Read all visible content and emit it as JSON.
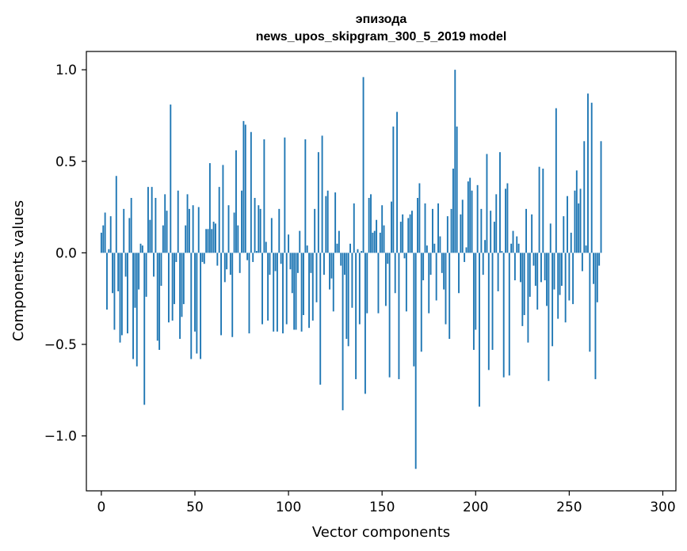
{
  "chart_data": {
    "type": "bar",
    "title": [
      "эпизода",
      "news_upos_skipgram_300_5_2019 model"
    ],
    "xlabel": "Vector components",
    "ylabel": "Components values",
    "xlim": [
      -8,
      307
    ],
    "ylim": [
      -1.3,
      1.1
    ],
    "xticks": [
      0,
      50,
      100,
      150,
      200,
      250,
      300
    ],
    "yticks": [
      1.0,
      0.5,
      0.0,
      -0.5,
      -1.0
    ],
    "ytick_labels": [
      "1.0",
      "0.5",
      "0.0",
      "−0.5",
      "−1.0"
    ],
    "bar_color": "#1f77b4",
    "values": [
      0.11,
      0.15,
      0.22,
      -0.31,
      0.02,
      0.2,
      -0.22,
      -0.42,
      0.42,
      -0.21,
      -0.49,
      -0.45,
      0.24,
      -0.13,
      -0.44,
      0.19,
      0.3,
      -0.58,
      -0.3,
      -0.62,
      -0.2,
      0.05,
      0.04,
      -0.83,
      -0.24,
      0.36,
      0.18,
      0.36,
      -0.13,
      0.3,
      -0.48,
      -0.53,
      -0.18,
      0.15,
      0.32,
      0.23,
      -0.38,
      0.81,
      -0.37,
      -0.28,
      -0.05,
      0.34,
      -0.47,
      -0.35,
      -0.28,
      0.15,
      0.32,
      0.24,
      -0.58,
      0.26,
      -0.43,
      -0.55,
      0.25,
      -0.58,
      -0.05,
      -0.06,
      0.13,
      0.13,
      0.49,
      0.13,
      0.17,
      0.16,
      -0.07,
      0.36,
      -0.45,
      0.48,
      -0.16,
      -0.09,
      0.26,
      -0.12,
      -0.46,
      0.22,
      0.56,
      0.15,
      -0.11,
      0.34,
      0.72,
      0.7,
      -0.04,
      -0.44,
      0.66,
      -0.05,
      0.3,
      0.01,
      0.26,
      0.24,
      -0.39,
      0.62,
      0.06,
      -0.37,
      -0.12,
      0.19,
      -0.43,
      -0.1,
      -0.43,
      0.24,
      -0.06,
      -0.44,
      0.63,
      -0.39,
      0.1,
      -0.09,
      -0.22,
      -0.42,
      -0.42,
      -0.11,
      0.12,
      -0.43,
      -0.34,
      0.62,
      0.04,
      -0.41,
      -0.11,
      -0.37,
      0.24,
      -0.27,
      0.55,
      -0.72,
      0.64,
      -0.12,
      0.31,
      0.34,
      -0.2,
      -0.14,
      -0.32,
      0.33,
      0.05,
      0.12,
      -0.07,
      -0.86,
      -0.12,
      -0.47,
      -0.51,
      0.05,
      -0.3,
      0.27,
      -0.69,
      0.02,
      -0.39,
      0.01,
      0.96,
      -0.77,
      -0.33,
      0.3,
      0.32,
      0.11,
      0.12,
      0.18,
      -0.33,
      0.11,
      0.26,
      0.15,
      -0.29,
      -0.06,
      -0.68,
      0.28,
      0.69,
      -0.22,
      0.77,
      -0.69,
      0.17,
      0.21,
      -0.03,
      -0.32,
      0.19,
      0.21,
      0.23,
      -0.62,
      -1.18,
      0.3,
      0.38,
      -0.54,
      -0.15,
      0.27,
      0.04,
      -0.33,
      -0.12,
      0.24,
      0.05,
      -0.26,
      0.27,
      0.09,
      -0.11,
      -0.2,
      -0.39,
      0.2,
      -0.47,
      0.24,
      0.46,
      1.0,
      0.69,
      -0.22,
      0.21,
      0.29,
      -0.05,
      0.03,
      0.39,
      0.41,
      0.34,
      -0.53,
      -0.42,
      0.37,
      -0.84,
      0.24,
      -0.12,
      0.07,
      0.54,
      -0.64,
      0.23,
      -0.53,
      0.17,
      0.32,
      -0.21,
      0.55,
      0.01,
      -0.68,
      0.35,
      0.38,
      -0.67,
      0.05,
      0.12,
      -0.15,
      0.09,
      0.05,
      -0.16,
      -0.4,
      -0.34,
      0.24,
      -0.49,
      -0.24,
      0.21,
      -0.07,
      -0.18,
      -0.31,
      0.47,
      -0.16,
      0.46,
      -0.15,
      -0.29,
      -0.7,
      0.16,
      -0.51,
      -0.2,
      0.79,
      -0.36,
      -0.23,
      -0.18,
      0.2,
      -0.38,
      0.31,
      -0.26,
      0.11,
      -0.28,
      0.34,
      0.45,
      0.27,
      0.35,
      -0.1,
      0.61,
      0.04,
      0.87,
      -0.54,
      0.82,
      -0.17,
      -0.69,
      -0.27,
      -0.07,
      0.61
    ]
  }
}
